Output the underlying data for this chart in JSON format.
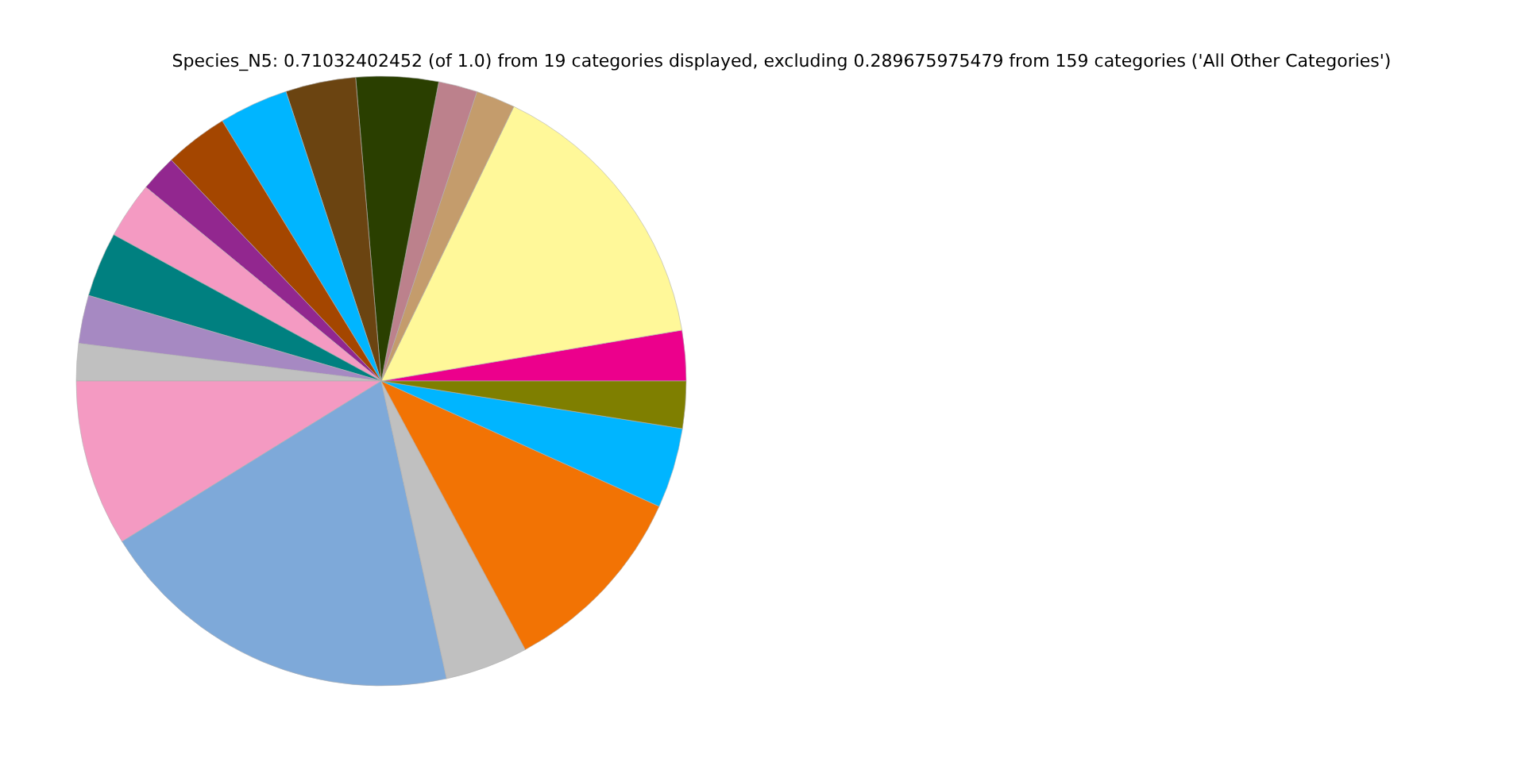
{
  "chart_data": {
    "type": "pie",
    "title": "Species_N5: 0.71032402452 (of 1.0) from 19 categories displayed, excluding 0.289675975479 from 159 categories ('All Other Categories')",
    "categories": [
      null,
      null,
      null,
      null,
      null,
      null,
      null,
      null,
      null,
      null,
      null,
      null,
      null,
      null,
      null,
      null,
      null,
      null,
      null
    ],
    "values": [
      2.67,
      15.17,
      2.08,
      2.06,
      4.36,
      3.72,
      3.67,
      3.36,
      1.94,
      3.0,
      3.44,
      2.56,
      1.97,
      8.83,
      19.61,
      4.39,
      10.42,
      4.25,
      2.5
    ],
    "colors": [
      "#ec008c",
      "#fff899",
      "#c49c6c",
      "#bc818c",
      "#2a3f00",
      "#6b4411",
      "#00b5ff",
      "#a44600",
      "#92278f",
      "#f49ac2",
      "#008080",
      "#a689c2",
      "#c0c0c0",
      "#f49ac2",
      "#7ea9d9",
      "#c0c0c0",
      "#f27304",
      "#00b5ff",
      "#7f7f00"
    ]
  }
}
